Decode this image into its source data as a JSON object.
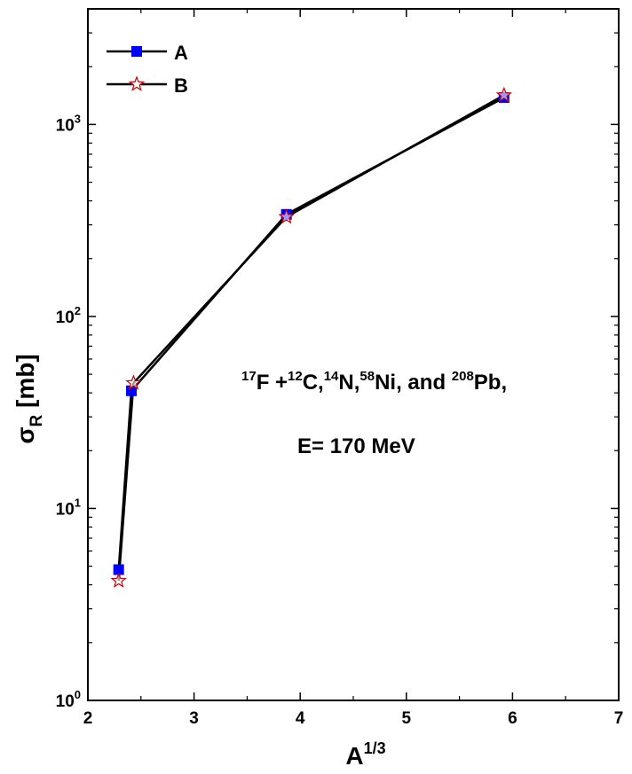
{
  "chart_data": {
    "type": "line",
    "xlabel": "A",
    "xlabel_sup": "1/3",
    "ylabel": "σ",
    "ylabel_sub": "R",
    "ylabel_unit": "[mb]",
    "xlim": [
      2,
      7
    ],
    "ylim": [
      1,
      4000
    ],
    "yscale": "log",
    "x_ticks": [
      "2",
      "3",
      "4",
      "5",
      "6",
      "7"
    ],
    "y_ticks": [
      {
        "value": 1,
        "base": "10",
        "exp": "0"
      },
      {
        "value": 10,
        "base": "10",
        "exp": "1"
      },
      {
        "value": 100,
        "base": "10",
        "exp": "2"
      },
      {
        "value": 1000,
        "base": "10",
        "exp": "3"
      }
    ],
    "legend_position": "top-left",
    "series": [
      {
        "name": "A",
        "marker": "square",
        "color": "#0000ff",
        "x": [
          2.29,
          2.41,
          3.87,
          5.92
        ],
        "y": [
          4.8,
          41,
          340,
          1380
        ]
      },
      {
        "name": "B",
        "marker": "star",
        "color": "#cc0000",
        "x": [
          2.29,
          2.43,
          3.87,
          5.92
        ],
        "y": [
          4.2,
          45,
          330,
          1420
        ]
      }
    ],
    "annotations": {
      "reaction": [
        {
          "sup": "17",
          "text": "F +"
        },
        {
          "sup": "12",
          "text": "C,"
        },
        {
          "sup": "14",
          "text": "N,"
        },
        {
          "sup": "58",
          "text": "Ni, and "
        },
        {
          "sup": "208",
          "text": "Pb,"
        }
      ],
      "energy": "E= 170 MeV"
    }
  }
}
